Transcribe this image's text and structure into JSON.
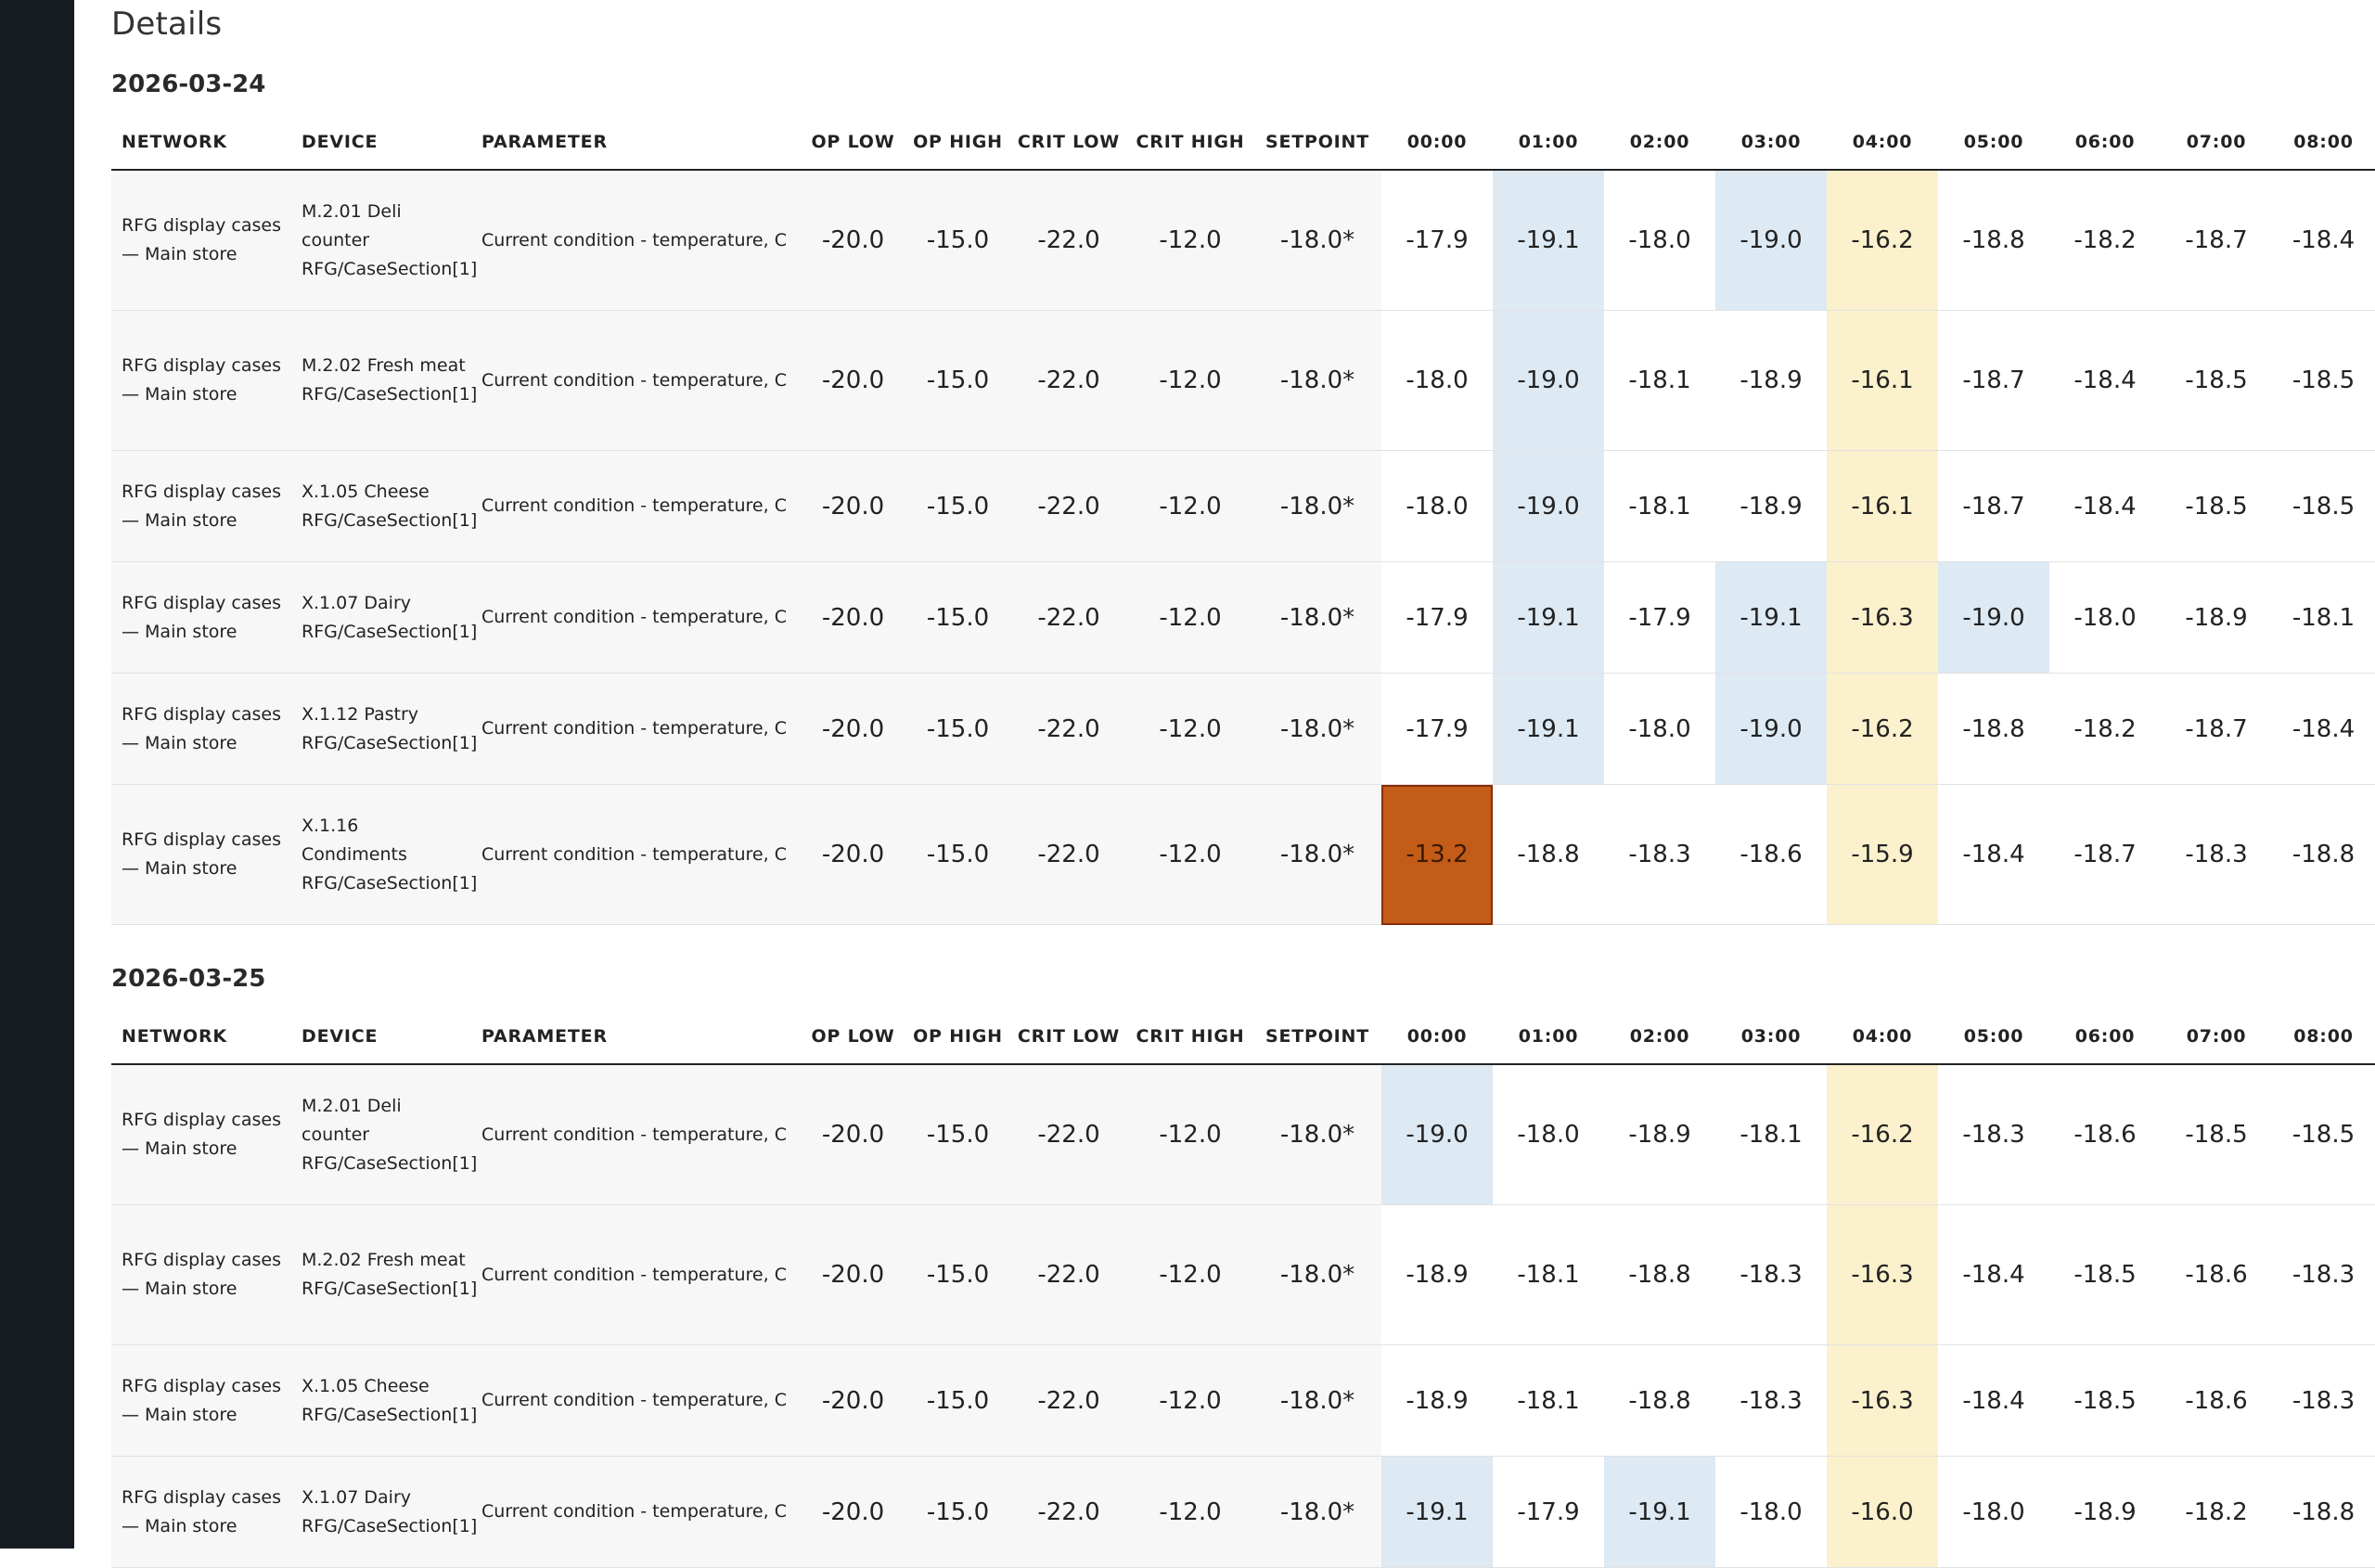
{
  "page": {
    "title": "Details"
  },
  "columns": [
    "NETWORK",
    "DEVICE",
    "PARAMETER",
    "OP LOW",
    "OP HIGH",
    "CRIT LOW",
    "CRIT HIGH",
    "SETPOINT",
    "00:00",
    "01:00",
    "02:00",
    "03:00",
    "04:00",
    "05:00",
    "06:00",
    "07:00",
    "08:00"
  ],
  "colors": {
    "sidebar": "#161b22",
    "low": "#dde9f3",
    "high": "#fbf1cc",
    "alarm": "#c35b19"
  },
  "sections": [
    {
      "date": "2026-03-24",
      "rows": [
        {
          "network": "RFG display cases — Main store",
          "device": "M.2.01 Deli counter RFG/CaseSection[1]",
          "parameter": "Current condition - temperature, C",
          "op_low": "-20.0",
          "op_high": "-15.0",
          "crit_low": "-22.0",
          "crit_high": "-12.0",
          "setpoint": "-18.0*",
          "hours": [
            {
              "v": "-17.9",
              "s": ""
            },
            {
              "v": "-19.1",
              "s": "low"
            },
            {
              "v": "-18.0",
              "s": ""
            },
            {
              "v": "-19.0",
              "s": "low"
            },
            {
              "v": "-16.2",
              "s": "high"
            },
            {
              "v": "-18.8",
              "s": ""
            },
            {
              "v": "-18.2",
              "s": ""
            },
            {
              "v": "-18.7",
              "s": ""
            },
            {
              "v": "-18.4",
              "s": ""
            }
          ]
        },
        {
          "network": "RFG display cases — Main store",
          "device": "M.2.02 Fresh meat RFG/CaseSection[1]",
          "parameter": "Current condition - temperature, C",
          "op_low": "-20.0",
          "op_high": "-15.0",
          "crit_low": "-22.0",
          "crit_high": "-12.0",
          "setpoint": "-18.0*",
          "hours": [
            {
              "v": "-18.0",
              "s": ""
            },
            {
              "v": "-19.0",
              "s": "low"
            },
            {
              "v": "-18.1",
              "s": ""
            },
            {
              "v": "-18.9",
              "s": ""
            },
            {
              "v": "-16.1",
              "s": "high"
            },
            {
              "v": "-18.7",
              "s": ""
            },
            {
              "v": "-18.4",
              "s": ""
            },
            {
              "v": "-18.5",
              "s": ""
            },
            {
              "v": "-18.5",
              "s": ""
            }
          ]
        },
        {
          "network": "RFG display cases — Main store",
          "device": "X.1.05 Cheese RFG/CaseSection[1]",
          "parameter": "Current condition - temperature, C",
          "op_low": "-20.0",
          "op_high": "-15.0",
          "crit_low": "-22.0",
          "crit_high": "-12.0",
          "setpoint": "-18.0*",
          "hours": [
            {
              "v": "-18.0",
              "s": ""
            },
            {
              "v": "-19.0",
              "s": "low"
            },
            {
              "v": "-18.1",
              "s": ""
            },
            {
              "v": "-18.9",
              "s": ""
            },
            {
              "v": "-16.1",
              "s": "high"
            },
            {
              "v": "-18.7",
              "s": ""
            },
            {
              "v": "-18.4",
              "s": ""
            },
            {
              "v": "-18.5",
              "s": ""
            },
            {
              "v": "-18.5",
              "s": ""
            }
          ]
        },
        {
          "network": "RFG display cases — Main store",
          "device": "X.1.07 Dairy RFG/CaseSection[1]",
          "parameter": "Current condition - temperature, C",
          "op_low": "-20.0",
          "op_high": "-15.0",
          "crit_low": "-22.0",
          "crit_high": "-12.0",
          "setpoint": "-18.0*",
          "hours": [
            {
              "v": "-17.9",
              "s": ""
            },
            {
              "v": "-19.1",
              "s": "low"
            },
            {
              "v": "-17.9",
              "s": ""
            },
            {
              "v": "-19.1",
              "s": "low"
            },
            {
              "v": "-16.3",
              "s": "high"
            },
            {
              "v": "-19.0",
              "s": "low"
            },
            {
              "v": "-18.0",
              "s": ""
            },
            {
              "v": "-18.9",
              "s": ""
            },
            {
              "v": "-18.1",
              "s": ""
            }
          ]
        },
        {
          "network": "RFG display cases — Main store",
          "device": "X.1.12 Pastry RFG/CaseSection[1]",
          "parameter": "Current condition - temperature, C",
          "op_low": "-20.0",
          "op_high": "-15.0",
          "crit_low": "-22.0",
          "crit_high": "-12.0",
          "setpoint": "-18.0*",
          "hours": [
            {
              "v": "-17.9",
              "s": ""
            },
            {
              "v": "-19.1",
              "s": "low"
            },
            {
              "v": "-18.0",
              "s": ""
            },
            {
              "v": "-19.0",
              "s": "low"
            },
            {
              "v": "-16.2",
              "s": "high"
            },
            {
              "v": "-18.8",
              "s": ""
            },
            {
              "v": "-18.2",
              "s": ""
            },
            {
              "v": "-18.7",
              "s": ""
            },
            {
              "v": "-18.4",
              "s": ""
            }
          ]
        },
        {
          "network": "RFG display cases — Main store",
          "device": "X.1.16 Condiments RFG/CaseSection[1]",
          "parameter": "Current condition - temperature, C",
          "op_low": "-20.0",
          "op_high": "-15.0",
          "crit_low": "-22.0",
          "crit_high": "-12.0",
          "setpoint": "-18.0*",
          "hours": [
            {
              "v": "-13.2",
              "s": "alarm"
            },
            {
              "v": "-18.8",
              "s": ""
            },
            {
              "v": "-18.3",
              "s": ""
            },
            {
              "v": "-18.6",
              "s": ""
            },
            {
              "v": "-15.9",
              "s": "high"
            },
            {
              "v": "-18.4",
              "s": ""
            },
            {
              "v": "-18.7",
              "s": ""
            },
            {
              "v": "-18.3",
              "s": ""
            },
            {
              "v": "-18.8",
              "s": ""
            }
          ]
        }
      ]
    },
    {
      "date": "2026-03-25",
      "rows": [
        {
          "network": "RFG display cases — Main store",
          "device": "M.2.01 Deli counter RFG/CaseSection[1]",
          "parameter": "Current condition - temperature, C",
          "op_low": "-20.0",
          "op_high": "-15.0",
          "crit_low": "-22.0",
          "crit_high": "-12.0",
          "setpoint": "-18.0*",
          "hours": [
            {
              "v": "-19.0",
              "s": "low"
            },
            {
              "v": "-18.0",
              "s": ""
            },
            {
              "v": "-18.9",
              "s": ""
            },
            {
              "v": "-18.1",
              "s": ""
            },
            {
              "v": "-16.2",
              "s": "high"
            },
            {
              "v": "-18.3",
              "s": ""
            },
            {
              "v": "-18.6",
              "s": ""
            },
            {
              "v": "-18.5",
              "s": ""
            },
            {
              "v": "-18.5",
              "s": ""
            }
          ]
        },
        {
          "network": "RFG display cases — Main store",
          "device": "M.2.02 Fresh meat RFG/CaseSection[1]",
          "parameter": "Current condition - temperature, C",
          "op_low": "-20.0",
          "op_high": "-15.0",
          "crit_low": "-22.0",
          "crit_high": "-12.0",
          "setpoint": "-18.0*",
          "hours": [
            {
              "v": "-18.9",
              "s": ""
            },
            {
              "v": "-18.1",
              "s": ""
            },
            {
              "v": "-18.8",
              "s": ""
            },
            {
              "v": "-18.3",
              "s": ""
            },
            {
              "v": "-16.3",
              "s": "high"
            },
            {
              "v": "-18.4",
              "s": ""
            },
            {
              "v": "-18.5",
              "s": ""
            },
            {
              "v": "-18.6",
              "s": ""
            },
            {
              "v": "-18.3",
              "s": ""
            }
          ]
        },
        {
          "network": "RFG display cases — Main store",
          "device": "X.1.05 Cheese RFG/CaseSection[1]",
          "parameter": "Current condition - temperature, C",
          "op_low": "-20.0",
          "op_high": "-15.0",
          "crit_low": "-22.0",
          "crit_high": "-12.0",
          "setpoint": "-18.0*",
          "hours": [
            {
              "v": "-18.9",
              "s": ""
            },
            {
              "v": "-18.1",
              "s": ""
            },
            {
              "v": "-18.8",
              "s": ""
            },
            {
              "v": "-18.3",
              "s": ""
            },
            {
              "v": "-16.3",
              "s": "high"
            },
            {
              "v": "-18.4",
              "s": ""
            },
            {
              "v": "-18.5",
              "s": ""
            },
            {
              "v": "-18.6",
              "s": ""
            },
            {
              "v": "-18.3",
              "s": ""
            }
          ]
        },
        {
          "network": "RFG display cases — Main store",
          "device": "X.1.07 Dairy RFG/CaseSection[1]",
          "parameter": "Current condition - temperature, C",
          "op_low": "-20.0",
          "op_high": "-15.0",
          "crit_low": "-22.0",
          "crit_high": "-12.0",
          "setpoint": "-18.0*",
          "hours": [
            {
              "v": "-19.1",
              "s": "low"
            },
            {
              "v": "-17.9",
              "s": ""
            },
            {
              "v": "-19.1",
              "s": "low"
            },
            {
              "v": "-18.0",
              "s": ""
            },
            {
              "v": "-16.0",
              "s": "high"
            },
            {
              "v": "-18.0",
              "s": ""
            },
            {
              "v": "-18.9",
              "s": ""
            },
            {
              "v": "-18.2",
              "s": ""
            },
            {
              "v": "-18.8",
              "s": ""
            }
          ]
        }
      ]
    }
  ]
}
